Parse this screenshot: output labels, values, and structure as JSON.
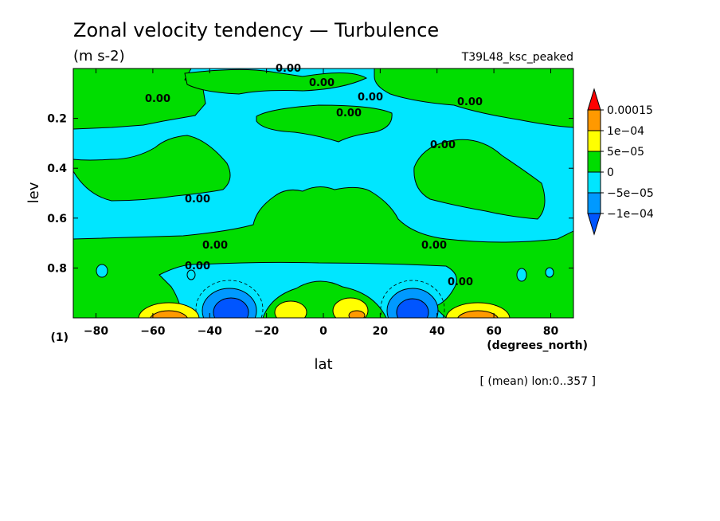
{
  "figure": {
    "title": "Zonal velocity tendency — Turbulence",
    "units": "(m s-2)",
    "experiment": "T39L48_ksc_peaked",
    "panel_label": "(1)",
    "footnote": "[ (mean) lon:0..357 ]"
  },
  "chart_data": {
    "type": "heatmap",
    "subtype": "filled-contour",
    "title": "Zonal velocity tendency — Turbulence",
    "units": "(m s-2)",
    "xlabel": "lat",
    "x_units_label": "(degrees_north)",
    "ylabel": "lev",
    "xlim": [
      -88,
      88
    ],
    "ylim": [
      1.0,
      0.0
    ],
    "y_inverted": true,
    "x_ticks": [
      -80,
      -60,
      -40,
      -20,
      0,
      20,
      40,
      60,
      80
    ],
    "x_tick_labels": [
      "−80",
      "−60",
      "−40",
      "−20",
      "0",
      "20",
      "40",
      "60",
      "80"
    ],
    "y_ticks": [
      0.2,
      0.4,
      0.6,
      0.8
    ],
    "y_tick_labels": [
      "0.2",
      "0.4",
      "0.6",
      "0.8"
    ],
    "colorbar": {
      "labels": [
        "0.00015",
        "1e−04",
        "5e−05",
        "0",
        "−5e−05",
        "−1e−04"
      ],
      "boundaries": [
        0.00015,
        0.0001,
        5e-05,
        0,
        -5e-05,
        -0.0001
      ],
      "colors_top_to_bottom": [
        "#ff0000",
        "#ff9900",
        "#ffff00",
        "#00dd00",
        "#00e6ff",
        "#0099ff",
        "#0055ff"
      ]
    },
    "contour_label": "0.00",
    "features": [
      {
        "lat": -30,
        "lev": 0.95,
        "class": "below -1e-04",
        "sign": "negative"
      },
      {
        "lat": 30,
        "lev": 0.95,
        "class": "below -1e-04",
        "sign": "negative"
      },
      {
        "lat": -55,
        "lev": 0.98,
        "class": "above 1e-04",
        "sign": "positive"
      },
      {
        "lat": 55,
        "lev": 0.98,
        "class": "above 1e-04",
        "sign": "positive"
      },
      {
        "lat": 5,
        "lev": 0.96,
        "class": "5e-05 to 1e-04",
        "sign": "positive"
      },
      {
        "lat": -10,
        "lev": 0.96,
        "class": "5e-05 to 1e-04",
        "sign": "positive"
      },
      {
        "lat": -55,
        "lev": 0.45,
        "class": "0 to 5e-05",
        "sign": "positive"
      },
      {
        "lat": 55,
        "lev": 0.45,
        "class": "0 to 5e-05",
        "sign": "positive"
      },
      {
        "lat": 0,
        "lev": 0.6,
        "class": "0 to 5e-05",
        "sign": "positive"
      },
      {
        "lat": 5,
        "lev": 0.18,
        "class": "0 to 5e-05",
        "sign": "positive"
      }
    ],
    "grid": false,
    "legend_position": "right"
  },
  "colors": {
    "green": "#00dd00",
    "cyan": "#00e6ff",
    "blue": "#0099ff",
    "deep_blue": "#0055ff",
    "yellow": "#ffff00",
    "orange": "#ff9900",
    "red": "#ff0000"
  }
}
